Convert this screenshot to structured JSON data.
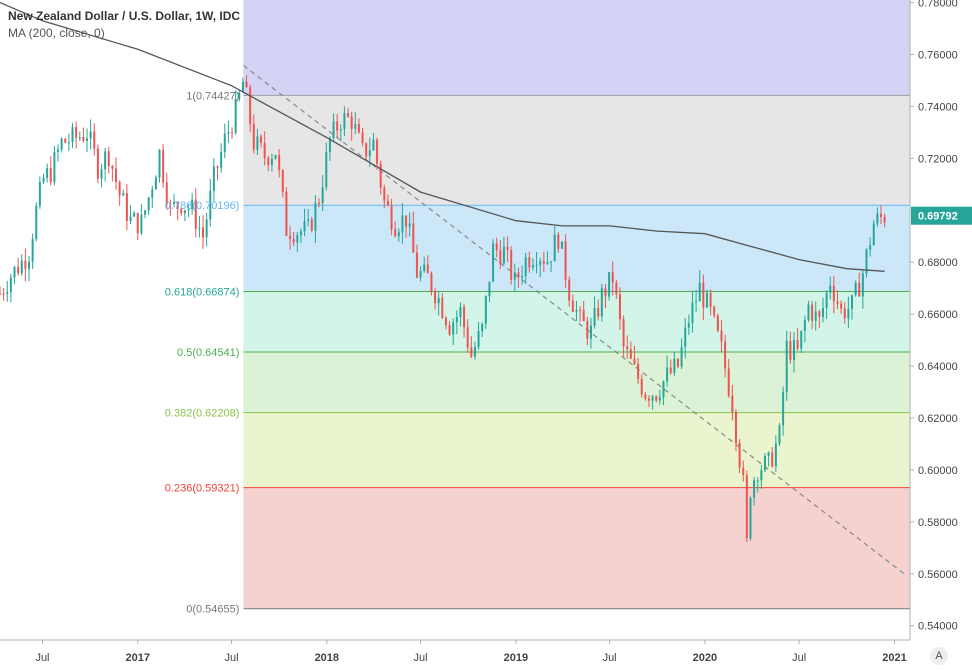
{
  "legend": {
    "title": "New Zealand Dollar / U.S. Dollar, 1W, IDC",
    "ma": "MA (200, close, 0)"
  },
  "last_price": "0.69792",
  "auto_label": "A",
  "colors": {
    "up": "#26a69a",
    "down": "#ef5350",
    "ma": "#555555",
    "trendline": "#888888",
    "price_tag": "#26a69a"
  },
  "chart_data": {
    "type": "candlestick",
    "title": "New Zealand Dollar / U.S. Dollar, 1W, IDC",
    "ylim": [
      0.5345,
      0.781
    ],
    "xlim": [
      "2016-04-10",
      "2021-01-31"
    ],
    "y_ticks": [
      "0.78000",
      "0.76000",
      "0.74000",
      "0.72000",
      "0.70000",
      "0.68000",
      "0.66000",
      "0.64000",
      "0.62000",
      "0.60000",
      "0.58000",
      "0.56000",
      "0.54000"
    ],
    "x_ticks": [
      {
        "label": "Jul",
        "date": "2016-07-01"
      },
      {
        "label": "2017",
        "date": "2017-01-01"
      },
      {
        "label": "Jul",
        "date": "2017-07-01"
      },
      {
        "label": "2018",
        "date": "2018-01-01"
      },
      {
        "label": "Jul",
        "date": "2018-07-01"
      },
      {
        "label": "2019",
        "date": "2019-01-01"
      },
      {
        "label": "Jul",
        "date": "2019-07-01"
      },
      {
        "label": "2020",
        "date": "2020-01-01"
      },
      {
        "label": "Jul",
        "date": "2020-07-01"
      },
      {
        "label": "2021",
        "date": "2021-01-01"
      }
    ],
    "fib_levels": [
      {
        "ratio": "1",
        "price": 0.74427,
        "label": "1(0.74427)",
        "line": "#9e9e9e",
        "fill": "#e6e6e6",
        "text": "#787878"
      },
      {
        "ratio": "0.786",
        "price": 0.70196,
        "label": "0.786(0.70196)",
        "line": "#64b5f6",
        "fill": "#cce8f8",
        "text": "#64b5f6"
      },
      {
        "ratio": "0.618",
        "price": 0.66874,
        "label": "0.618(0.66874)",
        "line": "#4caf50",
        "fill": "#d3f4e8",
        "text": "#26a69a"
      },
      {
        "ratio": "0.5",
        "price": 0.64541,
        "label": "0.5(0.64541)",
        "line": "#4caf50",
        "fill": "#dcf2d6",
        "text": "#4caf50"
      },
      {
        "ratio": "0.382",
        "price": 0.62208,
        "label": "0.382(0.62208)",
        "line": "#8bc34a",
        "fill": "#eaf5cf",
        "text": "#8bc34a"
      },
      {
        "ratio": "0.236",
        "price": 0.59321,
        "label": "0.236(0.59321)",
        "line": "#f44336",
        "fill": "#f5d2d0",
        "text": "#f44336"
      },
      {
        "ratio": "0",
        "price": 0.54655,
        "label": "0(0.54655)",
        "line": "#787878",
        "fill": null,
        "text": "#787878"
      }
    ],
    "fib_extension_fill": "#d4d3f5",
    "fib_start_date": "2017-07-24",
    "trendline": [
      [
        "2017-07-24",
        0.7558
      ],
      [
        "2021-01-25",
        0.5592
      ]
    ],
    "close_path": [
      [
        "2016-04-10",
        0.668
      ],
      [
        "2016-05-01",
        0.675
      ],
      [
        "2016-05-22",
        0.68
      ],
      [
        "2016-06-05",
        0.684
      ],
      [
        "2016-06-19",
        0.7
      ],
      [
        "2016-07-03",
        0.712
      ],
      [
        "2016-07-17",
        0.715
      ],
      [
        "2016-08-07",
        0.726
      ],
      [
        "2016-08-21",
        0.727
      ],
      [
        "2016-09-04",
        0.728
      ],
      [
        "2016-09-25",
        0.73
      ],
      [
        "2016-10-16",
        0.717
      ],
      [
        "2016-11-06",
        0.722
      ],
      [
        "2016-11-27",
        0.706
      ],
      [
        "2016-12-18",
        0.696
      ],
      [
        "2017-01-08",
        0.695
      ],
      [
        "2017-01-22",
        0.705
      ],
      [
        "2017-02-12",
        0.722
      ],
      [
        "2017-03-05",
        0.7
      ],
      [
        "2017-03-26",
        0.703
      ],
      [
        "2017-04-16",
        0.7
      ],
      [
        "2017-05-07",
        0.69
      ],
      [
        "2017-05-28",
        0.712
      ],
      [
        "2017-06-18",
        0.727
      ],
      [
        "2017-07-09",
        0.738
      ],
      [
        "2017-07-24",
        0.75
      ],
      [
        "2017-08-13",
        0.726
      ],
      [
        "2017-09-03",
        0.721
      ],
      [
        "2017-09-24",
        0.723
      ],
      [
        "2017-10-15",
        0.693
      ],
      [
        "2017-11-05",
        0.692
      ],
      [
        "2017-11-26",
        0.692
      ],
      [
        "2017-12-17",
        0.705
      ],
      [
        "2018-01-07",
        0.727
      ],
      [
        "2018-01-28",
        0.735
      ],
      [
        "2018-02-18",
        0.735
      ],
      [
        "2018-03-11",
        0.722
      ],
      [
        "2018-04-01",
        0.726
      ],
      [
        "2018-04-22",
        0.703
      ],
      [
        "2018-05-13",
        0.695
      ],
      [
        "2018-06-03",
        0.697
      ],
      [
        "2018-06-24",
        0.676
      ],
      [
        "2018-07-15",
        0.674
      ],
      [
        "2018-08-05",
        0.666
      ],
      [
        "2018-08-26",
        0.656
      ],
      [
        "2018-09-16",
        0.661
      ],
      [
        "2018-10-07",
        0.644
      ],
      [
        "2018-10-28",
        0.654
      ],
      [
        "2018-11-18",
        0.685
      ],
      [
        "2018-12-09",
        0.684
      ],
      [
        "2018-12-30",
        0.672
      ],
      [
        "2019-01-20",
        0.681
      ],
      [
        "2019-02-10",
        0.684
      ],
      [
        "2019-03-03",
        0.681
      ],
      [
        "2019-03-24",
        0.69
      ],
      [
        "2019-04-14",
        0.669
      ],
      [
        "2019-05-05",
        0.657
      ],
      [
        "2019-05-26",
        0.653
      ],
      [
        "2019-06-16",
        0.667
      ],
      [
        "2019-07-07",
        0.674
      ],
      [
        "2019-07-28",
        0.647
      ],
      [
        "2019-08-18",
        0.638
      ],
      [
        "2019-09-08",
        0.63
      ],
      [
        "2019-09-29",
        0.63
      ],
      [
        "2019-10-20",
        0.636
      ],
      [
        "2019-11-10",
        0.64
      ],
      [
        "2019-12-01",
        0.658
      ],
      [
        "2019-12-22",
        0.67
      ],
      [
        "2020-01-12",
        0.66
      ],
      [
        "2020-02-02",
        0.646
      ],
      [
        "2020-02-23",
        0.626
      ],
      [
        "2020-03-15",
        0.594
      ],
      [
        "2020-03-22",
        0.571
      ],
      [
        "2020-03-29",
        0.593
      ],
      [
        "2020-04-12",
        0.601
      ],
      [
        "2020-05-03",
        0.602
      ],
      [
        "2020-05-24",
        0.613
      ],
      [
        "2020-06-07",
        0.647
      ],
      [
        "2020-06-28",
        0.645
      ],
      [
        "2020-07-19",
        0.663
      ],
      [
        "2020-08-09",
        0.657
      ],
      [
        "2020-08-30",
        0.673
      ],
      [
        "2020-09-20",
        0.661
      ],
      [
        "2020-10-11",
        0.663
      ],
      [
        "2020-11-01",
        0.676
      ],
      [
        "2020-11-22",
        0.695
      ],
      [
        "2020-12-13",
        0.698
      ]
    ],
    "ma_path": [
      [
        "2016-04-10",
        0.78
      ],
      [
        "2016-07-01",
        0.773
      ],
      [
        "2017-01-01",
        0.762
      ],
      [
        "2017-07-01",
        0.748
      ],
      [
        "2018-01-01",
        0.728
      ],
      [
        "2018-07-01",
        0.707
      ],
      [
        "2019-01-01",
        0.696
      ],
      [
        "2019-04-01",
        0.694
      ],
      [
        "2019-07-01",
        0.694
      ],
      [
        "2019-10-01",
        0.692
      ],
      [
        "2020-01-01",
        0.691
      ],
      [
        "2020-04-01",
        0.686
      ],
      [
        "2020-07-01",
        0.681
      ],
      [
        "2020-10-01",
        0.6775
      ],
      [
        "2020-12-13",
        0.6765
      ]
    ]
  }
}
